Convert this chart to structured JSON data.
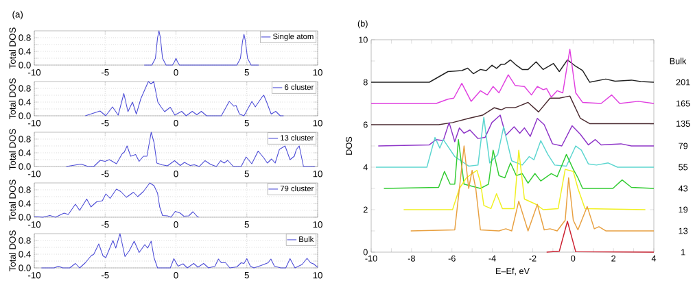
{
  "chart_data": [
    {
      "type": "line",
      "title": "(a)",
      "ylabel": "Total DOS",
      "xlim": [
        -10,
        10
      ],
      "ylim": [
        0,
        1
      ],
      "xticks": [
        -10,
        -5,
        0,
        5,
        10
      ],
      "yticks": [
        {
          "value": 0,
          "label": "0.0"
        },
        {
          "value": 0.2,
          "label": null
        },
        0.4,
        {
          "value": 0.6,
          "label": null
        },
        0.8
      ],
      "grid": true,
      "legend": "top right",
      "series": [
        {
          "name": "Single atom",
          "color": "#4b4bd6",
          "x": [
            -2.24,
            -1.7,
            -1.45,
            -1.3,
            -1.2,
            -1.1,
            -0.95,
            -0.7,
            -0.25,
            -0.1,
            0,
            0.1,
            0.25,
            4.3,
            4.55,
            4.7,
            4.8,
            4.9,
            5.05,
            5.3,
            5.84
          ],
          "values": [
            0,
            0,
            0.2,
            0.8,
            1.0,
            0.8,
            0.2,
            0,
            0,
            0.1,
            0.2,
            0.1,
            0,
            0,
            0.2,
            0.7,
            0.9,
            0.7,
            0.2,
            0,
            0
          ]
        }
      ]
    },
    {
      "type": "line",
      "ylabel": "Total DOS",
      "xlim": [
        -10,
        10
      ],
      "ylim": [
        0,
        1
      ],
      "xticks": [
        -10,
        -5,
        0,
        5,
        10
      ],
      "yticks": [
        {
          "value": 0,
          "label": "0.0"
        },
        {
          "value": 0.2,
          "label": null
        },
        0.4,
        {
          "value": 0.6,
          "label": null
        },
        0.8
      ],
      "grid": true,
      "legend": "top right",
      "series": [
        {
          "name": "6 cluster",
          "color": "#4b4bd6",
          "x": [
            -6.4,
            -5.36,
            -4.96,
            -4.48,
            -4.08,
            -3.68,
            -3.39,
            -3.07,
            -2.8,
            -2.48,
            -1.95,
            -1.76,
            -1.57,
            -1.28,
            -1.04,
            -0.8,
            -0.4,
            -0.08,
            0.4,
            0.72,
            1.15,
            1.47,
            1.79,
            2.16,
            3.2,
            3.76,
            4.08,
            4.24,
            4.48,
            4.8,
            5.36,
            5.6,
            6.08,
            6.2,
            6.4,
            6.72,
            7.04,
            7.36,
            7.6
          ],
          "values": [
            0,
            0.14,
            0,
            0.26,
            0.02,
            0.65,
            0.12,
            0.4,
            0.05,
            0.5,
            1.0,
            0.93,
            1.0,
            0.4,
            0.25,
            0.12,
            0.25,
            0.02,
            0.13,
            0,
            0.13,
            0.03,
            0.13,
            0,
            0,
            0.42,
            0.28,
            0.3,
            0.05,
            0,
            0.42,
            0.26,
            0.55,
            0.6,
            0.4,
            0.05,
            0.13,
            0,
            0
          ]
        }
      ]
    },
    {
      "type": "line",
      "ylabel": "Total DOS",
      "xlim": [
        -10,
        10
      ],
      "ylim": [
        0,
        1
      ],
      "xticks": [
        -10,
        -5,
        0,
        5,
        10
      ],
      "yticks": [
        {
          "value": 0,
          "label": "0.0"
        },
        {
          "value": 0.2,
          "label": null
        },
        0.4,
        {
          "value": 0.6,
          "label": null
        },
        0.8
      ],
      "grid": true,
      "legend": "top right",
      "series": [
        {
          "name": "13 cluster",
          "color": "#4b4bd6",
          "x": [
            -7.75,
            -6.7,
            -6.2,
            -5.8,
            -5.35,
            -5.0,
            -4.7,
            -4.2,
            -3.8,
            -3.65,
            -3.45,
            -3.2,
            -2.85,
            -2.6,
            -2.3,
            -2.05,
            -1.75,
            -1.55,
            -1.35,
            -1.0,
            -0.6,
            -0.1,
            0.3,
            0.6,
            1.0,
            1.3,
            1.65,
            2.05,
            2.45,
            2.85,
            3.15,
            3.4,
            3.65,
            4.05,
            4.6,
            4.95,
            5.35,
            5.8,
            6.2,
            6.45,
            6.75,
            7.0,
            7.3,
            7.7,
            8.05,
            8.35,
            8.5,
            8.7,
            9.0,
            9.8
          ],
          "values": [
            0,
            0.07,
            0,
            0,
            0.18,
            0.15,
            0.2,
            0.08,
            0.37,
            0.42,
            0.6,
            0.3,
            0.35,
            0.15,
            0.3,
            0.3,
            1.0,
            0.7,
            0.1,
            0.05,
            0.02,
            0.17,
            0.03,
            0.12,
            0.03,
            0.05,
            0,
            0.17,
            0.06,
            0,
            0.17,
            0.1,
            0.18,
            0,
            0,
            0.28,
            0.08,
            0.45,
            0.25,
            0.1,
            0.22,
            0.1,
            0.5,
            0.6,
            0.2,
            0.3,
            0.5,
            0.6,
            0,
            0
          ]
        }
      ]
    },
    {
      "type": "line",
      "ylabel": "Total DOS",
      "xlim": [
        -10,
        10
      ],
      "ylim": [
        0,
        1
      ],
      "xticks": [
        -10,
        -5,
        0,
        5,
        10
      ],
      "yticks": [
        {
          "value": 0,
          "label": "0.0"
        },
        {
          "value": 0.2,
          "label": null
        },
        0.4,
        {
          "value": 0.6,
          "label": null
        },
        0.8
      ],
      "grid": true,
      "legend": "top right",
      "series": [
        {
          "name": "79 cluster",
          "color": "#4b4bd6",
          "x": [
            -10,
            -9.4,
            -8.9,
            -8.5,
            -7.9,
            -7.6,
            -7.1,
            -6.8,
            -6.3,
            -6.0,
            -5.6,
            -5.2,
            -4.95,
            -4.65,
            -4.2,
            -3.9,
            -3.5,
            -3.0,
            -2.7,
            -2.3,
            -1.85,
            -1.55,
            -1.3,
            -1.15,
            -0.95,
            -0.6,
            -0.35,
            -0.05,
            0.3,
            0.55,
            0.9,
            1.2,
            1.5,
            1.6
          ],
          "values": [
            0.02,
            0,
            0.05,
            0,
            0.12,
            0.08,
            0.38,
            0.2,
            0.53,
            0.3,
            0.45,
            0.48,
            0.68,
            0.55,
            0.82,
            0.75,
            0.58,
            0.73,
            0.6,
            0.75,
            1.0,
            0.92,
            0.7,
            0.3,
            0.05,
            0.04,
            0,
            0.17,
            0.12,
            0.03,
            0.04,
            0.16,
            0.02,
            0
          ]
        }
      ]
    },
    {
      "type": "line",
      "ylabel": "Total DOS",
      "xlim": [
        -10,
        10
      ],
      "ylim": [
        0,
        1
      ],
      "xticks": [
        -10,
        -5,
        0,
        5,
        10
      ],
      "yticks": [
        {
          "value": 0,
          "label": "0.0"
        },
        {
          "value": 0.2,
          "label": null
        },
        0.4,
        {
          "value": 0.6,
          "label": null
        },
        0.8
      ],
      "grid": true,
      "legend": "top right",
      "series": [
        {
          "name": "Bulk",
          "color": "#4b4bd6",
          "x": [
            -9.5,
            -8.6,
            -8.3,
            -8.0,
            -7.5,
            -7.1,
            -6.8,
            -6.4,
            -6.0,
            -5.8,
            -5.45,
            -5.15,
            -4.95,
            -4.7,
            -4.45,
            -4.25,
            -3.95,
            -3.6,
            -3.3,
            -2.95,
            -2.6,
            -2.2,
            -2.0,
            -1.75,
            -1.55,
            -1.3,
            -0.4,
            -0.15,
            0.15,
            0.5,
            0.8,
            1.25,
            1.55,
            1.95,
            2.3,
            2.75,
            3.0,
            3.2,
            3.5,
            3.8,
            4.3,
            4.6,
            4.8,
            5.0,
            5.25,
            5.5,
            6.0,
            6.5,
            6.7,
            6.95,
            7.4,
            7.75,
            8.05,
            8.4,
            8.9,
            9.25,
            9.5,
            9.7,
            10
          ],
          "values": [
            0,
            0,
            0.05,
            0,
            0,
            0.13,
            0,
            0.15,
            0.35,
            0.4,
            0.7,
            0.35,
            0.3,
            0.55,
            0.8,
            0.58,
            1.0,
            0.33,
            0.5,
            0.78,
            0.45,
            0.68,
            0.58,
            0.78,
            0.3,
            0,
            0,
            0.27,
            0.05,
            0.12,
            0,
            0.13,
            0.02,
            0.13,
            0,
            0.05,
            0.26,
            0.15,
            0.15,
            0,
            0.03,
            0.15,
            0.13,
            0.27,
            0.05,
            0,
            0.07,
            0.15,
            0.26,
            0.05,
            0,
            0,
            0.27,
            0,
            0.1,
            0.28,
            0.15,
            0.12,
            0.02
          ]
        }
      ]
    },
    {
      "type": "line",
      "title": "(b)",
      "xlabel": "E–Ef, eV",
      "ylabel": "DOS",
      "annotations": [
        "Bulk"
      ],
      "xlim": [
        -10,
        4
      ],
      "ylim": [
        0,
        10
      ],
      "xticks": [
        -10,
        {
          "value": -9,
          "label": null
        },
        -8,
        {
          "value": -7,
          "label": null
        },
        -6,
        {
          "value": -5,
          "label": null
        },
        -4,
        {
          "value": -3,
          "label": null
        },
        -2,
        {
          "value": -1,
          "label": null
        },
        0,
        {
          "value": 1,
          "label": null
        },
        2,
        {
          "value": 3,
          "label": null
        },
        4
      ],
      "yticks": [
        0,
        {
          "value": 1,
          "label": null
        },
        2,
        {
          "value": 3,
          "label": null
        },
        4,
        {
          "value": 5,
          "label": null
        },
        6,
        {
          "value": 7,
          "label": null
        },
        8,
        {
          "value": 9,
          "label": null
        },
        10
      ],
      "series": [
        {
          "name": "201",
          "color": "#222222",
          "x": [
            -10,
            -7.12,
            -6.2,
            -5.51,
            -5.22,
            -4.94,
            -4.59,
            -4.3,
            -4.02,
            -3.79,
            -3.56,
            -3.38,
            -3.1,
            -2.81,
            -2.52,
            -2.23,
            -1.83,
            -1.48,
            -0.97,
            -0.68,
            -0.28,
            0.13,
            0.47,
            0.82,
            1.62,
            2.08,
            2.89,
            3.35,
            4
          ],
          "values": [
            8,
            8,
            8.5,
            8.55,
            8.66,
            8.4,
            8.6,
            8.55,
            8.8,
            8.65,
            8.85,
            8.85,
            9.05,
            8.8,
            8.6,
            8.6,
            8.96,
            8.6,
            8.88,
            8.5,
            9.05,
            8.75,
            8.55,
            8.0,
            8.15,
            8.05,
            8.1,
            8.03,
            8.0
          ]
        },
        {
          "name": "165",
          "color": "#e040e0",
          "x": [
            -10,
            -6.78,
            -6.2,
            -5.91,
            -5.51,
            -5.05,
            -4.59,
            -4.25,
            -3.96,
            -3.67,
            -3.21,
            -2.87,
            -2.41,
            -2.06,
            -1.77,
            -1.48,
            -1.31,
            -1.08,
            -0.79,
            -0.51,
            -0.16,
            0.13,
            0.47,
            1.39,
            1.91,
            2.31,
            3.23,
            4
          ],
          "values": [
            7,
            7,
            7.2,
            7.25,
            7.95,
            7.1,
            7.6,
            7.4,
            7.8,
            7.5,
            8.35,
            7.85,
            7.8,
            7.4,
            7.8,
            7.65,
            7.7,
            7.3,
            7.6,
            7.5,
            9.55,
            7.5,
            7.05,
            7.0,
            7.4,
            7.0,
            7.1,
            7.0
          ]
        },
        {
          "name": "135",
          "color": "#4a2a30",
          "x": [
            -10,
            -6.66,
            -5.97,
            -5.17,
            -4.48,
            -3.9,
            -3.56,
            -3.33,
            -2.87,
            -2.23,
            -1.71,
            -1.14,
            -0.68,
            -0.16,
            0.36,
            0.82,
            4
          ],
          "values": [
            6,
            6,
            6.1,
            6.3,
            6.45,
            6.8,
            6.7,
            6.8,
            6.8,
            7.05,
            6.6,
            7.25,
            7.25,
            7.35,
            6.3,
            6.05,
            6.05
          ]
        },
        {
          "name": "79",
          "color": "#8e35c8",
          "x": [
            -9.65,
            -7.12,
            -6.78,
            -6.43,
            -6.14,
            -5.86,
            -5.63,
            -5.4,
            -5.11,
            -4.71,
            -4.36,
            -4.02,
            -3.61,
            -3.33,
            -2.92,
            -2.64,
            -2.41,
            -2.12,
            -1.77,
            -1.43,
            -1.02,
            -0.56,
            -0.05,
            0.36,
            0.76,
            1.1,
            1.39,
            2.37,
            2.89,
            4
          ],
          "values": [
            5,
            5.05,
            5.3,
            5.25,
            6.1,
            5.2,
            5.85,
            5.6,
            5.75,
            5.35,
            5.4,
            6.1,
            6.45,
            5.5,
            5.9,
            5.6,
            5.85,
            5.45,
            6.3,
            6.0,
            5.1,
            5.0,
            5.95,
            5.55,
            5.05,
            5.3,
            5.05,
            5.1,
            5.0,
            5.0
          ]
        },
        {
          "name": "55",
          "color": "#5cd6d0",
          "x": [
            -9.77,
            -7.24,
            -6.84,
            -6.6,
            -6.43,
            -5.86,
            -5.17,
            -4.71,
            -4.42,
            -4.13,
            -3.73,
            -3.44,
            -3.04,
            -2.52,
            -2.17,
            -1.94,
            -1.6,
            -1.25,
            -0.91,
            -0.33,
            0.13,
            0.41,
            0.76,
            1.16,
            1.74,
            2.2,
            4
          ],
          "values": [
            4,
            4.0,
            5.4,
            4.9,
            5.3,
            4.5,
            4.05,
            4.1,
            6.35,
            4.2,
            4.6,
            5.9,
            4.3,
            4.1,
            4.5,
            4.35,
            5.25,
            4.6,
            4.1,
            4.05,
            5.0,
            4.8,
            4.15,
            4.1,
            4.2,
            4.0,
            4.0
          ]
        },
        {
          "name": "43",
          "color": "#33cc33",
          "x": [
            -9.37,
            -6.66,
            -6.37,
            -6.09,
            -5.86,
            -5.68,
            -5.4,
            -4.59,
            -4.19,
            -3.96,
            -3.67,
            -3.38,
            -3.1,
            -2.81,
            -2.52,
            -2.23,
            -1.89,
            -1.6,
            -1.08,
            -0.79,
            -0.33,
            0.01,
            0.24,
            0.47,
            1.97,
            2.43,
            2.89,
            4
          ],
          "values": [
            3,
            3.05,
            3.8,
            3.2,
            3.2,
            5.3,
            3.2,
            3.0,
            3.2,
            4.8,
            3.6,
            3.5,
            4.2,
            3.6,
            3.7,
            3.25,
            3.7,
            3.35,
            3.7,
            3.55,
            4.6,
            3.9,
            3.5,
            3.0,
            3.0,
            3.4,
            3.05,
            3.0
          ]
        },
        {
          "name": "19",
          "color": "#f0f020",
          "x": [
            -8.39,
            -5.97,
            -5.63,
            -5.28,
            -5.0,
            -4.76,
            -4.59,
            -4.42,
            -4.07,
            -3.79,
            -3.5,
            -2.92,
            -2.69,
            -2.41,
            -1.83,
            -1.48,
            -0.74,
            -0.39,
            0.01,
            0.24,
            0.59,
            3.58
          ],
          "values": [
            2,
            2.0,
            3.0,
            3.5,
            3.7,
            3.85,
            3.3,
            2.2,
            2.05,
            2.75,
            2.05,
            2.05,
            4.8,
            2.5,
            2.25,
            2.0,
            2.05,
            3.9,
            3.8,
            3.0,
            2.05,
            2.0
          ]
        },
        {
          "name": "13",
          "color": "#e8a040",
          "x": [
            -8.04,
            -5.86,
            -5.63,
            -5.4,
            -5.17,
            -5.0,
            -4.82,
            -4.59,
            -3.67,
            -3.33,
            -3.04,
            -2.69,
            -2.23,
            -1.77,
            -1.43,
            -1.14,
            -0.79,
            -0.39,
            -0.22,
            0.01,
            0.24,
            0.7,
            1.05,
            1.28,
            1.62,
            4
          ],
          "values": [
            1,
            1.05,
            3.0,
            5.0,
            3.0,
            3.85,
            3.0,
            1.05,
            1.0,
            1.1,
            1.0,
            2.4,
            1.0,
            2.25,
            1.05,
            1.1,
            1.0,
            1.5,
            3.5,
            1.5,
            1.05,
            2.15,
            1.1,
            1.2,
            1.0,
            1.0
          ]
        },
        {
          "name": "1",
          "color": "#cc2030",
          "x": [
            -1.31,
            -0.68,
            -0.28,
            0.13,
            4
          ],
          "values": [
            0,
            0.05,
            1.45,
            0.02,
            0
          ]
        }
      ]
    }
  ]
}
